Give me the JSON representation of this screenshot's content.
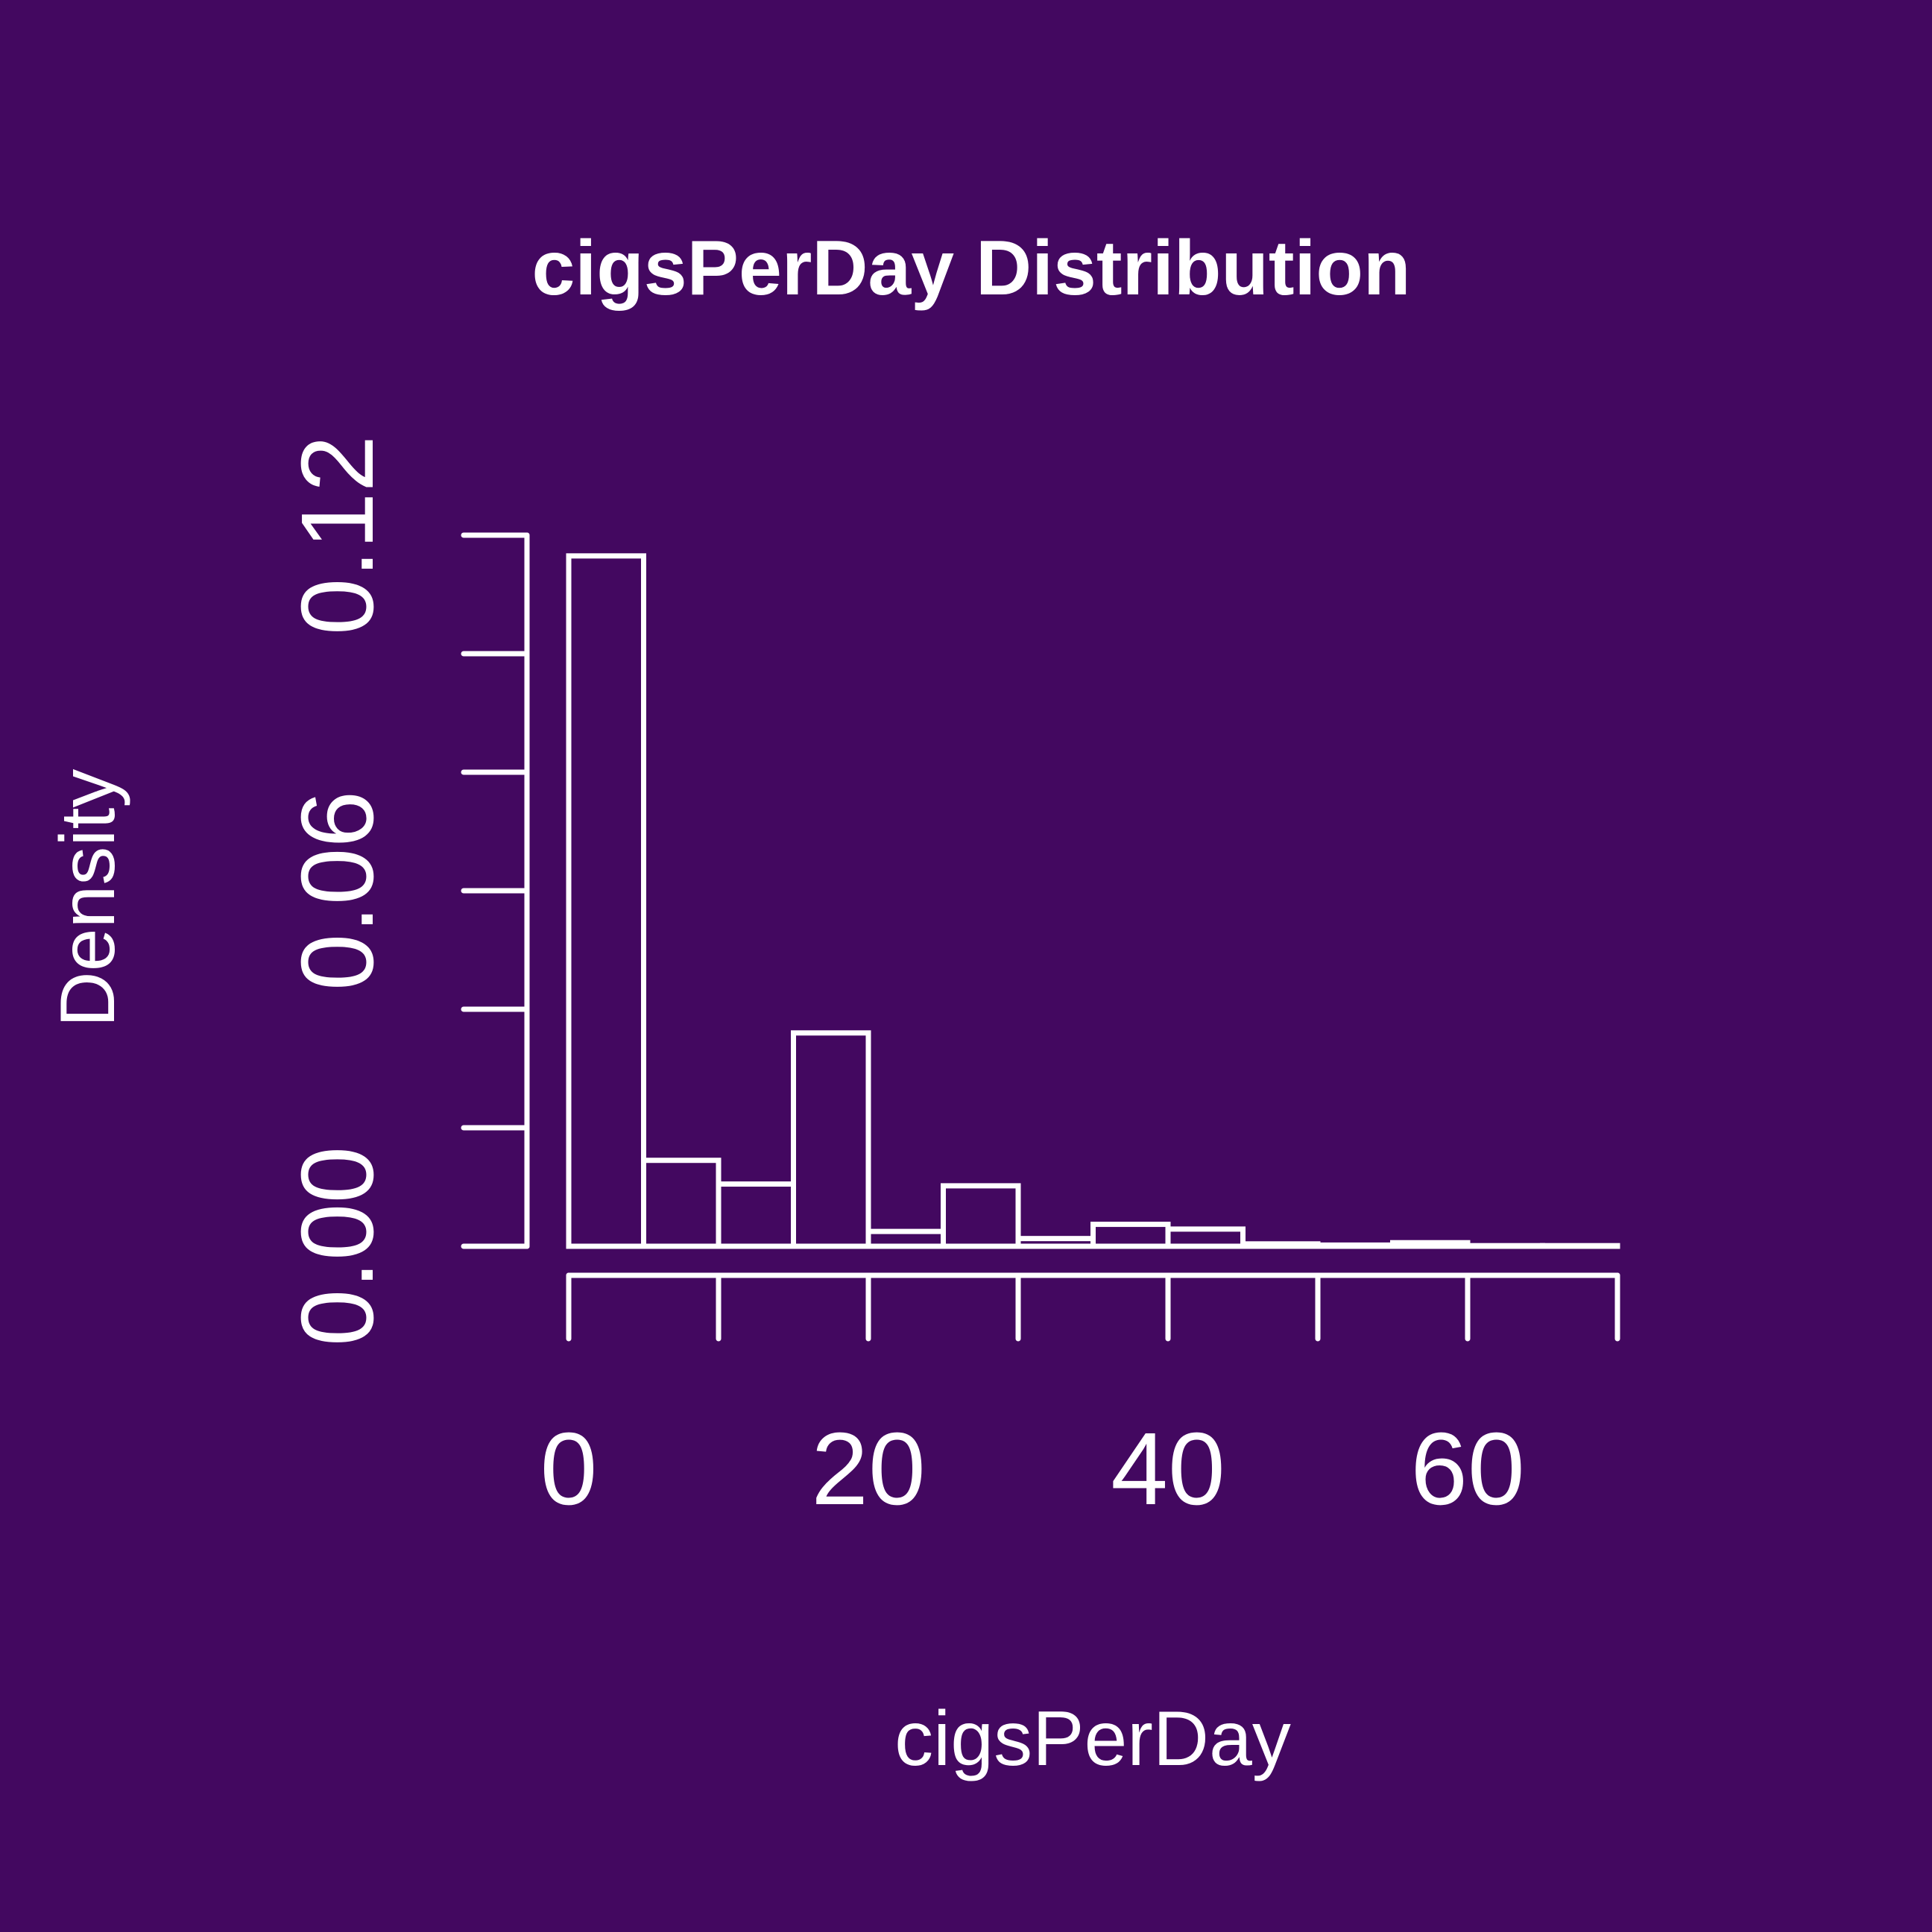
{
  "colors": {
    "background": "#430860",
    "foreground": "#ffffff"
  },
  "chart_data": {
    "type": "bar",
    "title": "cigsPerDay Distribution",
    "xlabel": "cigsPerDay",
    "ylabel": "Density",
    "bin_edges": [
      0,
      5,
      10,
      15,
      20,
      25,
      30,
      35,
      40,
      45,
      50,
      55,
      60,
      65,
      70
    ],
    "values": [
      0.1165,
      0.0145,
      0.0105,
      0.036,
      0.0025,
      0.0102,
      0.0013,
      0.0037,
      0.0029,
      0.0004,
      0.0002,
      0.0006,
      0.0001,
      0.0001
    ],
    "xlim": [
      0,
      70
    ],
    "ylim": [
      0,
      0.12
    ],
    "x_ticks": [
      0,
      10,
      20,
      30,
      40,
      50,
      60,
      70
    ],
    "x_tick_labels": [
      "0",
      "",
      "20",
      "",
      "40",
      "",
      "60",
      ""
    ],
    "y_ticks": [
      0,
      0.02,
      0.04,
      0.06,
      0.08,
      0.1,
      0.12
    ],
    "y_tick_labels": [
      "0.00",
      "",
      "",
      "0.06",
      "",
      "",
      "0.12"
    ],
    "grid": false,
    "legend": "none"
  }
}
